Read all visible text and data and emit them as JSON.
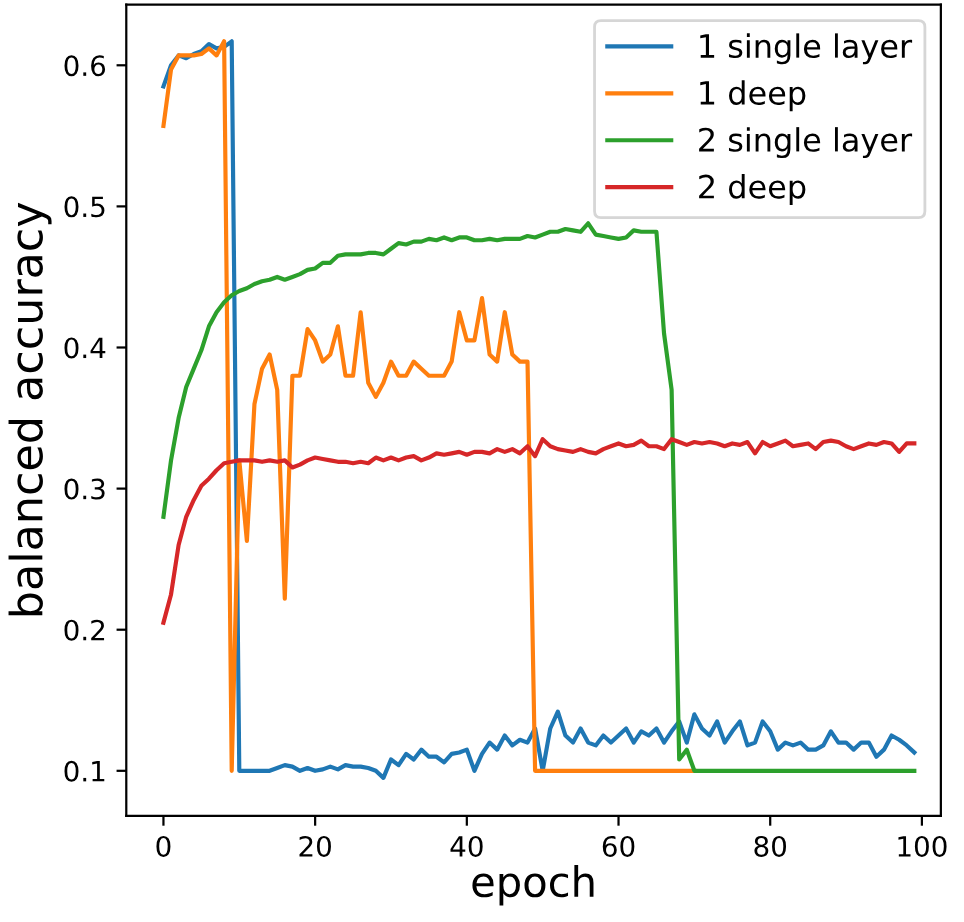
{
  "chart_data": {
    "type": "line",
    "xlabel": "epoch",
    "ylabel": "balanced accuracy",
    "x": [
      0,
      1,
      2,
      3,
      4,
      5,
      6,
      7,
      8,
      9,
      10,
      11,
      12,
      13,
      14,
      15,
      16,
      17,
      18,
      19,
      20,
      21,
      22,
      23,
      24,
      25,
      26,
      27,
      28,
      29,
      30,
      31,
      32,
      33,
      34,
      35,
      36,
      37,
      38,
      39,
      40,
      41,
      42,
      43,
      44,
      45,
      46,
      47,
      48,
      49,
      50,
      51,
      52,
      53,
      54,
      55,
      56,
      57,
      58,
      59,
      60,
      61,
      62,
      63,
      64,
      65,
      66,
      67,
      68,
      69,
      70,
      71,
      72,
      73,
      74,
      75,
      76,
      77,
      78,
      79,
      80,
      81,
      82,
      83,
      84,
      85,
      86,
      87,
      88,
      89,
      90,
      91,
      92,
      93,
      94,
      95,
      96,
      97,
      98,
      99
    ],
    "series": [
      {
        "name": "1 single layer",
        "color": "#1f77b4",
        "values": [
          0.585,
          0.6,
          0.607,
          0.605,
          0.608,
          0.61,
          0.615,
          0.612,
          0.613,
          0.617,
          0.1,
          0.1,
          0.1,
          0.1,
          0.1,
          0.102,
          0.104,
          0.103,
          0.1,
          0.102,
          0.1,
          0.101,
          0.103,
          0.101,
          0.104,
          0.103,
          0.103,
          0.102,
          0.1,
          0.095,
          0.108,
          0.104,
          0.112,
          0.108,
          0.115,
          0.11,
          0.11,
          0.106,
          0.112,
          0.113,
          0.115,
          0.1,
          0.112,
          0.12,
          0.115,
          0.125,
          0.118,
          0.122,
          0.12,
          0.13,
          0.1,
          0.13,
          0.142,
          0.125,
          0.12,
          0.13,
          0.12,
          0.118,
          0.125,
          0.12,
          0.125,
          0.13,
          0.12,
          0.128,
          0.125,
          0.13,
          0.12,
          0.128,
          0.135,
          0.12,
          0.14,
          0.13,
          0.125,
          0.135,
          0.12,
          0.128,
          0.135,
          0.118,
          0.12,
          0.135,
          0.128,
          0.115,
          0.12,
          0.118,
          0.12,
          0.115,
          0.115,
          0.118,
          0.128,
          0.12,
          0.12,
          0.115,
          0.12,
          0.12,
          0.11,
          0.115,
          0.125,
          0.122,
          0.118,
          0.113
        ]
      },
      {
        "name": "1 deep",
        "color": "#ff7f0e",
        "values": [
          0.557,
          0.597,
          0.607,
          0.607,
          0.607,
          0.608,
          0.612,
          0.607,
          0.617,
          0.1,
          0.32,
          0.263,
          0.36,
          0.385,
          0.395,
          0.37,
          0.222,
          0.38,
          0.38,
          0.413,
          0.405,
          0.39,
          0.395,
          0.415,
          0.38,
          0.38,
          0.425,
          0.375,
          0.365,
          0.375,
          0.39,
          0.38,
          0.38,
          0.39,
          0.385,
          0.38,
          0.38,
          0.38,
          0.39,
          0.425,
          0.405,
          0.405,
          0.435,
          0.395,
          0.39,
          0.425,
          0.395,
          0.39,
          0.39,
          0.1,
          0.1,
          0.1,
          0.1,
          0.1,
          0.1,
          0.1,
          0.1,
          0.1,
          0.1,
          0.1,
          0.1,
          0.1,
          0.1,
          0.1,
          0.1,
          0.1,
          0.1,
          0.1,
          0.1,
          0.1,
          0.1,
          null,
          null,
          null,
          null,
          null,
          null,
          null,
          null,
          null,
          null,
          null,
          null,
          null,
          null,
          null,
          null,
          null,
          null,
          null,
          null,
          null,
          null,
          null,
          null,
          null,
          null,
          null,
          null,
          null
        ]
      },
      {
        "name": "2 single layer",
        "color": "#2ca02c",
        "values": [
          0.28,
          0.32,
          0.35,
          0.372,
          0.385,
          0.398,
          0.415,
          0.425,
          0.432,
          0.437,
          0.44,
          0.442,
          0.445,
          0.447,
          0.448,
          0.45,
          0.448,
          0.45,
          0.452,
          0.455,
          0.456,
          0.46,
          0.46,
          0.465,
          0.466,
          0.466,
          0.466,
          0.467,
          0.467,
          0.466,
          0.47,
          0.474,
          0.473,
          0.475,
          0.475,
          0.477,
          0.476,
          0.478,
          0.476,
          0.478,
          0.478,
          0.476,
          0.476,
          0.477,
          0.476,
          0.477,
          0.477,
          0.477,
          0.479,
          0.478,
          0.48,
          0.482,
          0.482,
          0.484,
          0.483,
          0.482,
          0.488,
          0.48,
          0.479,
          0.478,
          0.477,
          0.478,
          0.483,
          0.482,
          0.482,
          0.482,
          0.41,
          0.37,
          0.108,
          0.115,
          0.1,
          0.1,
          0.1,
          0.1,
          0.1,
          0.1,
          0.1,
          0.1,
          0.1,
          0.1,
          0.1,
          0.1,
          0.1,
          0.1,
          0.1,
          0.1,
          0.1,
          0.1,
          0.1,
          0.1,
          0.1,
          0.1,
          0.1,
          0.1,
          0.1,
          0.1,
          0.1,
          0.1,
          0.1,
          0.1
        ]
      },
      {
        "name": "2 deep",
        "color": "#d62728",
        "values": [
          0.205,
          0.225,
          0.26,
          0.28,
          0.292,
          0.302,
          0.307,
          0.313,
          0.318,
          0.319,
          0.32,
          0.32,
          0.32,
          0.319,
          0.32,
          0.319,
          0.32,
          0.315,
          0.317,
          0.32,
          0.322,
          0.321,
          0.32,
          0.319,
          0.319,
          0.318,
          0.319,
          0.318,
          0.322,
          0.32,
          0.322,
          0.32,
          0.322,
          0.323,
          0.32,
          0.322,
          0.325,
          0.324,
          0.325,
          0.326,
          0.324,
          0.326,
          0.326,
          0.325,
          0.328,
          0.326,
          0.328,
          0.325,
          0.33,
          0.323,
          0.335,
          0.33,
          0.328,
          0.327,
          0.326,
          0.328,
          0.326,
          0.325,
          0.328,
          0.33,
          0.332,
          0.33,
          0.331,
          0.334,
          0.33,
          0.33,
          0.328,
          0.335,
          0.333,
          0.331,
          0.333,
          0.332,
          0.333,
          0.332,
          0.33,
          0.332,
          0.331,
          0.333,
          0.325,
          0.333,
          0.33,
          0.332,
          0.334,
          0.33,
          0.331,
          0.332,
          0.328,
          0.333,
          0.334,
          0.333,
          0.33,
          0.328,
          0.33,
          0.332,
          0.331,
          0.333,
          0.332,
          0.326,
          0.332,
          0.332
        ]
      }
    ],
    "xlim": [
      -4.9,
      102.5
    ],
    "ylim": [
      0.068,
      0.643
    ],
    "xticks": [
      0,
      20,
      40,
      60,
      80,
      100
    ],
    "yticks": [
      0.1,
      0.2,
      0.3,
      0.4,
      0.5,
      0.6
    ],
    "grid": false,
    "legend": "top right",
    "marker": "none",
    "line_style": "solid"
  }
}
